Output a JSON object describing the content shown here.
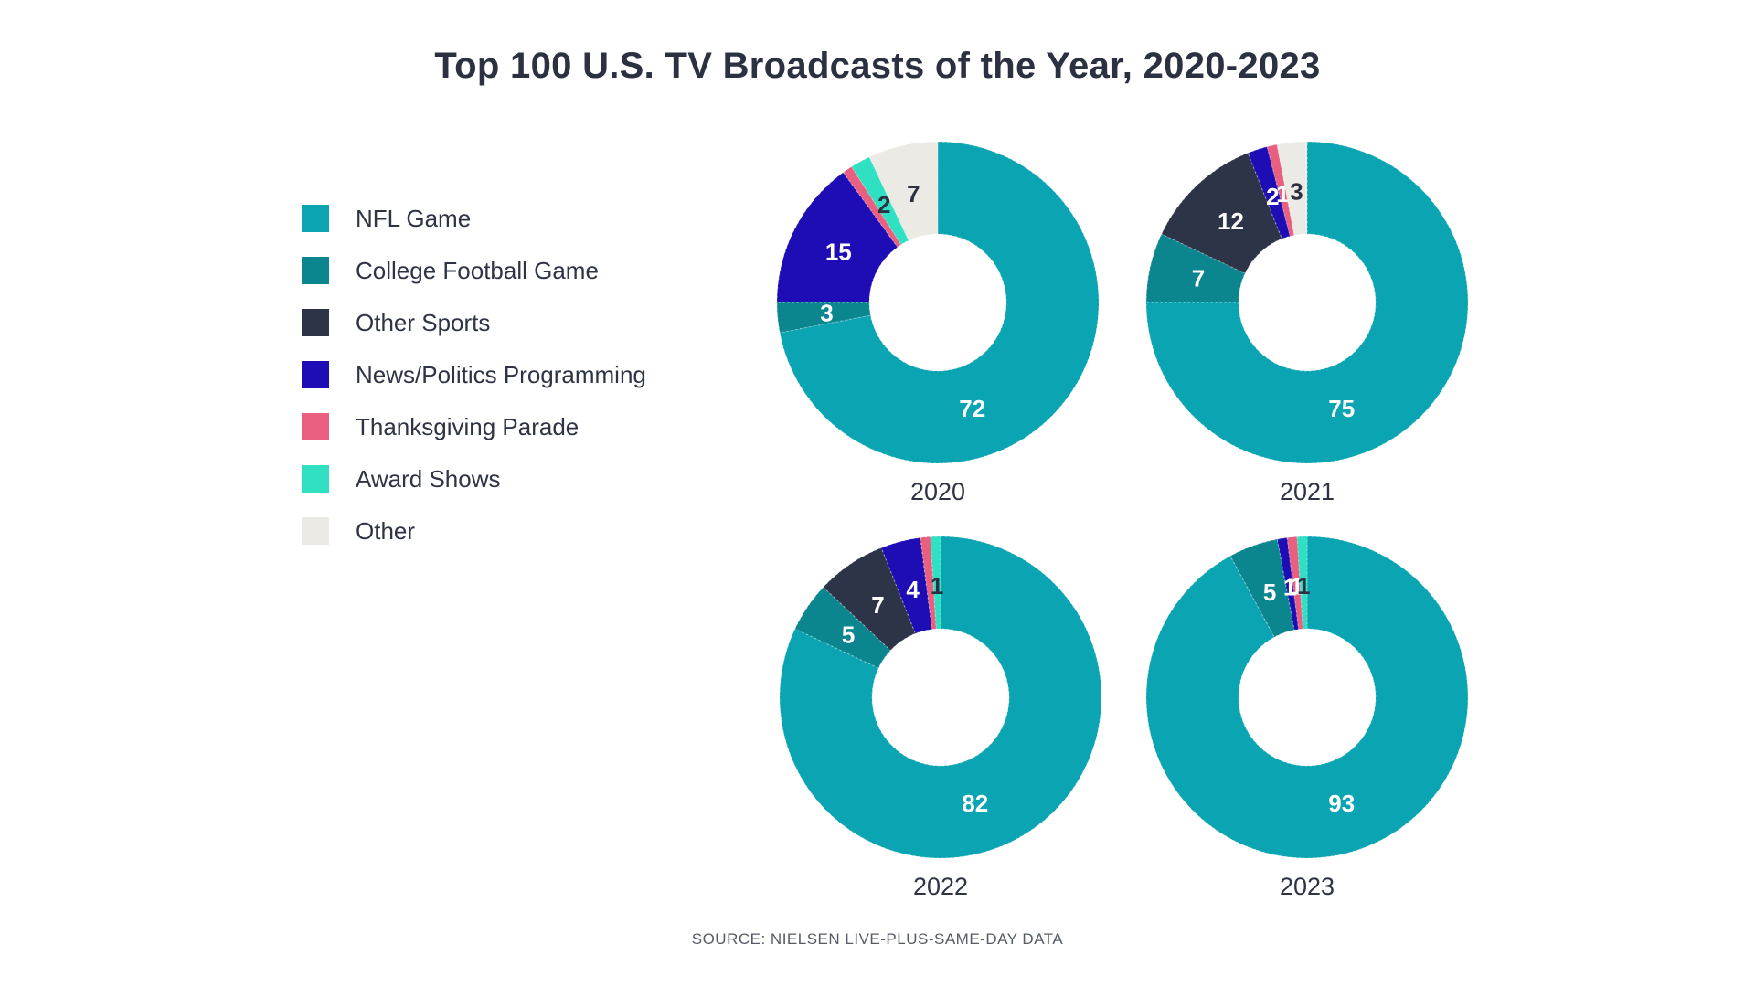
{
  "page": {
    "background": "#ffffff"
  },
  "text_colors": {
    "title": "#2b3140",
    "legend": "#2e3444",
    "year": "#2e3444",
    "source": "#565b68"
  },
  "chart_data": {
    "type": "pie",
    "variant": "donut",
    "title": "Top 100 U.S. TV Broadcasts of the Year, 2020-2023",
    "source": "SOURCE: NIELSEN LIVE-PLUS-SAME-DAY DATA",
    "legend_position": "left",
    "hole_ratio": 0.43,
    "categories": [
      "NFL Game",
      "College Football Game",
      "Other Sports",
      "News/Politics Programming",
      "Thanksgiving Parade",
      "Award Shows",
      "Other"
    ],
    "colors": [
      "#0ba4b2",
      "#0b868f",
      "#2e3447",
      "#1e0cb5",
      "#e85f80",
      "#2fe0c3",
      "#eceae4"
    ],
    "dark_label_categories": [
      5,
      6
    ],
    "label_colors": {
      "light": "#ffffff",
      "dark": "#2b3140"
    },
    "series": [
      {
        "name": "2020",
        "values": [
          72,
          3,
          0,
          15,
          1,
          2,
          7
        ],
        "labels": [
          "72",
          "3",
          "",
          "15",
          "",
          "2",
          "7"
        ]
      },
      {
        "name": "2021",
        "values": [
          75,
          7,
          12,
          2,
          1,
          0,
          3
        ],
        "labels": [
          "75",
          "7",
          "12",
          "2",
          "1",
          "",
          "3"
        ]
      },
      {
        "name": "2022",
        "values": [
          82,
          5,
          7,
          4,
          1,
          1,
          0
        ],
        "labels": [
          "82",
          "5",
          "7",
          "4",
          "",
          "1",
          ""
        ]
      },
      {
        "name": "2023",
        "values": [
          93,
          5,
          0,
          1,
          1,
          1,
          0
        ],
        "labels": [
          "93",
          "5",
          "",
          "1",
          "1",
          "1",
          ""
        ]
      }
    ]
  }
}
